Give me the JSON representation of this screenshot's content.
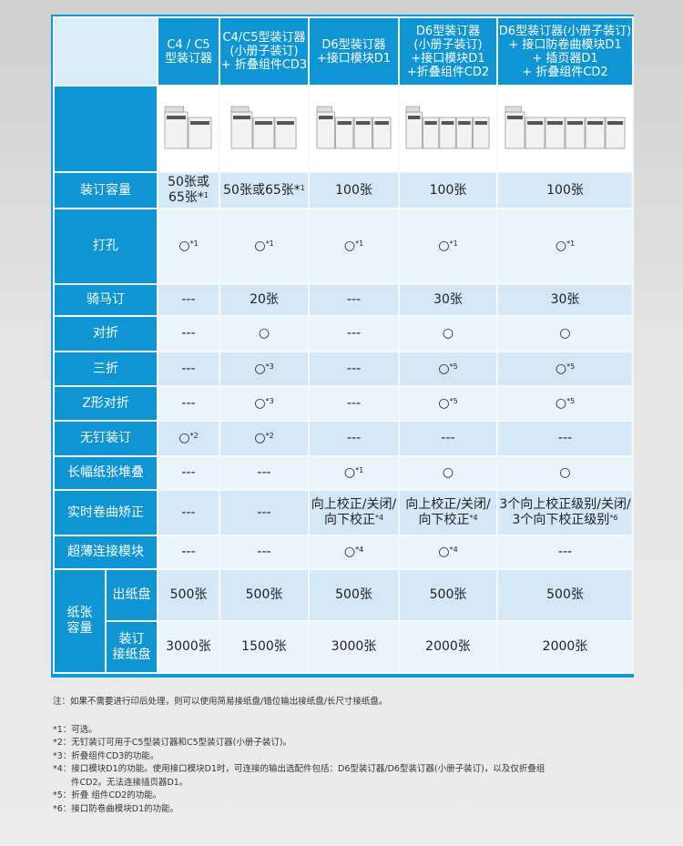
{
  "table": {
    "headers": [
      "C4 / C5\n型装订器",
      "C4/C5型装订器\n(小册子装订)\n+ 折叠组件CD3",
      "D6型装订器\n+接口模块D1",
      "D6型装订器\n(小册子装订)\n+接口模块D1\n+折叠组件CD2",
      "D6型装订器(小册子装订)\n+ 接口防卷曲模块D1\n+ 插页器D1\n+ 折叠组件CD2"
    ],
    "rows": [
      {
        "label": "装订容量",
        "cells": [
          {
            "v": "50张或\n65张*",
            "s": "1"
          },
          {
            "v": "50张或65张*",
            "s": "1"
          },
          {
            "v": "100张"
          },
          {
            "v": "100张"
          },
          {
            "v": "100张"
          }
        ]
      },
      {
        "label": "打孔",
        "cells": [
          {
            "v": "○",
            "s": "*1"
          },
          {
            "v": "○",
            "s": "*1"
          },
          {
            "v": "○",
            "s": "*1"
          },
          {
            "v": "○",
            "s": "*1"
          },
          {
            "v": "○",
            "s": "*1"
          }
        ]
      },
      {
        "label": "骑马订",
        "cells": [
          {
            "v": "---"
          },
          {
            "v": "20张"
          },
          {
            "v": "---"
          },
          {
            "v": "30张"
          },
          {
            "v": "30张"
          }
        ]
      },
      {
        "label": "对折",
        "cells": [
          {
            "v": "---"
          },
          {
            "v": "○"
          },
          {
            "v": "---"
          },
          {
            "v": "○"
          },
          {
            "v": "○"
          }
        ]
      },
      {
        "label": "三折",
        "cells": [
          {
            "v": "---"
          },
          {
            "v": "○",
            "s": "*3"
          },
          {
            "v": "---"
          },
          {
            "v": "○",
            "s": "*5"
          },
          {
            "v": "○",
            "s": "*5"
          }
        ]
      },
      {
        "label": "Z形对折",
        "cells": [
          {
            "v": "---"
          },
          {
            "v": "○",
            "s": "*3"
          },
          {
            "v": "---"
          },
          {
            "v": "○",
            "s": "*5"
          },
          {
            "v": "○",
            "s": "*5"
          }
        ]
      },
      {
        "label": "无钉装订",
        "cells": [
          {
            "v": "○",
            "s": "*2"
          },
          {
            "v": "○",
            "s": "*2"
          },
          {
            "v": "---"
          },
          {
            "v": "---"
          },
          {
            "v": "---"
          }
        ]
      },
      {
        "label": "长幅纸张堆叠",
        "cells": [
          {
            "v": "---"
          },
          {
            "v": "---"
          },
          {
            "v": "○",
            "s": "*1"
          },
          {
            "v": "○"
          },
          {
            "v": "○"
          }
        ]
      },
      {
        "label": "实时卷曲矫正",
        "cells": [
          {
            "v": "---"
          },
          {
            "v": "---"
          },
          {
            "v": "向上校正/关闭/\n向下校正",
            "s": "*4"
          },
          {
            "v": "向上校正/关闭/\n向下校正",
            "s": "*4"
          },
          {
            "v": "3个向上校正级别/关闭/\n3个向下校正级别",
            "s": "*6"
          }
        ]
      },
      {
        "label": "超薄连接模块",
        "cells": [
          {
            "v": "---"
          },
          {
            "v": "---"
          },
          {
            "v": "○",
            "s": "*4"
          },
          {
            "v": "○",
            "s": "*4"
          },
          {
            "v": "---"
          }
        ]
      }
    ],
    "capacity": {
      "group_label": "纸张\n容量",
      "rows": [
        {
          "label": "出纸盘",
          "cells": [
            "500张",
            "500张",
            "500张",
            "500张",
            "500张"
          ]
        },
        {
          "label": "装订\n接纸盘",
          "cells": [
            "3000张",
            "1500张",
            "3000张",
            "2000张",
            "2000张"
          ]
        }
      ]
    }
  },
  "notes": {
    "main": "注：如果不需要进行印后处理，则可以使用简易接纸盘/错位输出接纸盘/长尺寸接纸盘。",
    "footnotes": [
      "*1：可选。",
      "*2：无钉装订可用于C5型装订器和C5型装订器(小册子装订)。",
      "*3：折叠组件CD3的功能。",
      "*4：接口模块D1的功能。使用接口模块D1时，可连接的输出选配件包括：D6型装订器/D6型装订器(小册子装订)，以及仅折叠组",
      "件CD2。无法连接插页器D1。",
      "*5：折叠 组件CD2的功能。",
      "*6：接口防卷曲模块D1的功能。"
    ]
  },
  "colors": {
    "header_blue": "#0f95d3",
    "row_a": "#d3e7f6",
    "row_b": "#e9f4fb"
  }
}
